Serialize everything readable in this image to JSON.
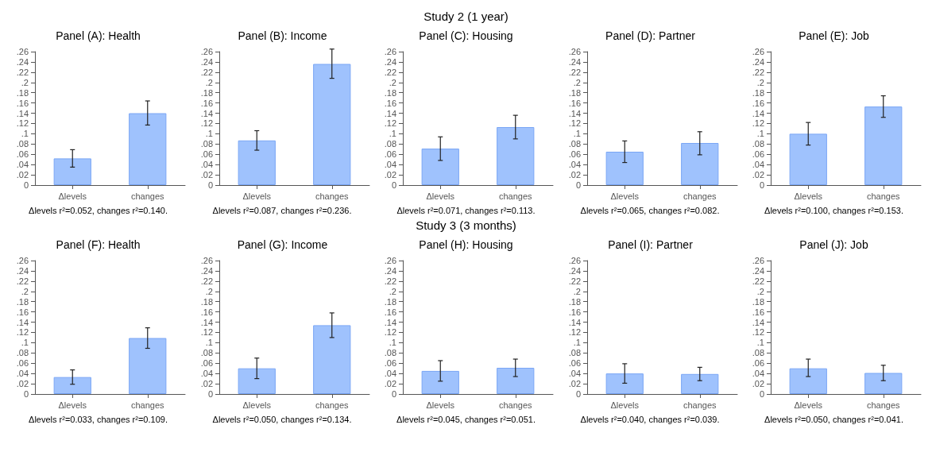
{
  "chart_data": [
    {
      "type": "other",
      "title": "Study 2 (1 year)"
    },
    {
      "type": "bar",
      "title": "Panel (A): Health",
      "categories": [
        "Δlevels",
        "changes"
      ],
      "values": [
        0.052,
        0.14
      ],
      "errors": [
        [
          0.035,
          0.069
        ],
        [
          0.117,
          0.164
        ]
      ],
      "color": "#9fc2fd",
      "ylim": [
        0,
        0.26
      ],
      "yticks": [
        {
          "value": 0,
          "label": "0"
        },
        {
          "value": 0.02,
          "label": ".02"
        },
        {
          "value": 0.04,
          "label": ".04"
        },
        {
          "value": 0.06,
          "label": ".06"
        },
        {
          "value": 0.08,
          "label": ".08"
        },
        {
          "value": 0.1,
          "label": ".1"
        },
        {
          "value": 0.12,
          "label": ".12"
        },
        {
          "value": 0.14,
          "label": ".14"
        },
        {
          "value": 0.16,
          "label": ".16"
        },
        {
          "value": 0.18,
          "label": ".18"
        },
        {
          "value": 0.2,
          "label": ".2"
        },
        {
          "value": 0.22,
          "label": ".22"
        },
        {
          "value": 0.24,
          "label": ".24"
        },
        {
          "value": 0.26,
          "label": ".26"
        }
      ],
      "annotations": [
        "Δlevels r²=0.052, changes r²=0.140."
      ]
    },
    {
      "type": "bar",
      "title": "Panel (B): Income",
      "categories": [
        "Δlevels",
        "changes"
      ],
      "values": [
        0.087,
        0.236
      ],
      "errors": [
        [
          0.068,
          0.106
        ],
        [
          0.208,
          0.265
        ]
      ],
      "color": "#9fc2fd",
      "ylim": [
        0,
        0.26
      ],
      "yticks": [
        {
          "value": 0,
          "label": "0"
        },
        {
          "value": 0.02,
          "label": ".02"
        },
        {
          "value": 0.04,
          "label": ".04"
        },
        {
          "value": 0.06,
          "label": ".06"
        },
        {
          "value": 0.08,
          "label": ".08"
        },
        {
          "value": 0.1,
          "label": ".1"
        },
        {
          "value": 0.12,
          "label": ".12"
        },
        {
          "value": 0.14,
          "label": ".14"
        },
        {
          "value": 0.16,
          "label": ".16"
        },
        {
          "value": 0.18,
          "label": ".18"
        },
        {
          "value": 0.2,
          "label": ".2"
        },
        {
          "value": 0.22,
          "label": ".22"
        },
        {
          "value": 0.24,
          "label": ".24"
        },
        {
          "value": 0.26,
          "label": ".26"
        }
      ],
      "annotations": [
        "Δlevels r²=0.087, changes r²=0.236."
      ]
    },
    {
      "type": "bar",
      "title": "Panel (C): Housing",
      "categories": [
        "Δlevels",
        "changes"
      ],
      "values": [
        0.071,
        0.113
      ],
      "errors": [
        [
          0.048,
          0.094
        ],
        [
          0.09,
          0.136
        ]
      ],
      "color": "#9fc2fd",
      "ylim": [
        0,
        0.26
      ],
      "yticks": [
        {
          "value": 0,
          "label": "0"
        },
        {
          "value": 0.02,
          "label": ".02"
        },
        {
          "value": 0.04,
          "label": ".04"
        },
        {
          "value": 0.06,
          "label": ".06"
        },
        {
          "value": 0.08,
          "label": ".08"
        },
        {
          "value": 0.1,
          "label": ".1"
        },
        {
          "value": 0.12,
          "label": ".12"
        },
        {
          "value": 0.14,
          "label": ".14"
        },
        {
          "value": 0.16,
          "label": ".16"
        },
        {
          "value": 0.18,
          "label": ".18"
        },
        {
          "value": 0.2,
          "label": ".2"
        },
        {
          "value": 0.22,
          "label": ".22"
        },
        {
          "value": 0.24,
          "label": ".24"
        },
        {
          "value": 0.26,
          "label": ".26"
        }
      ],
      "annotations": [
        "Δlevels r²=0.071, changes r²=0.113."
      ]
    },
    {
      "type": "bar",
      "title": "Panel (D): Partner",
      "categories": [
        "Δlevels",
        "changes"
      ],
      "values": [
        0.065,
        0.082
      ],
      "errors": [
        [
          0.044,
          0.086
        ],
        [
          0.059,
          0.104
        ]
      ],
      "color": "#9fc2fd",
      "ylim": [
        0,
        0.26
      ],
      "yticks": [
        {
          "value": 0,
          "label": "0"
        },
        {
          "value": 0.02,
          "label": ".02"
        },
        {
          "value": 0.04,
          "label": ".04"
        },
        {
          "value": 0.06,
          "label": ".06"
        },
        {
          "value": 0.08,
          "label": ".08"
        },
        {
          "value": 0.1,
          "label": ".1"
        },
        {
          "value": 0.12,
          "label": ".12"
        },
        {
          "value": 0.14,
          "label": ".14"
        },
        {
          "value": 0.16,
          "label": ".16"
        },
        {
          "value": 0.18,
          "label": ".18"
        },
        {
          "value": 0.2,
          "label": ".2"
        },
        {
          "value": 0.22,
          "label": ".22"
        },
        {
          "value": 0.24,
          "label": ".24"
        },
        {
          "value": 0.26,
          "label": ".26"
        }
      ],
      "annotations": [
        "Δlevels r²=0.065, changes r²=0.082."
      ]
    },
    {
      "type": "bar",
      "title": "Panel (E): Job",
      "categories": [
        "Δlevels",
        "changes"
      ],
      "values": [
        0.1,
        0.153
      ],
      "errors": [
        [
          0.078,
          0.122
        ],
        [
          0.132,
          0.174
        ]
      ],
      "color": "#9fc2fd",
      "ylim": [
        0,
        0.26
      ],
      "yticks": [
        {
          "value": 0,
          "label": "0"
        },
        {
          "value": 0.02,
          "label": ".02"
        },
        {
          "value": 0.04,
          "label": ".04"
        },
        {
          "value": 0.06,
          "label": ".06"
        },
        {
          "value": 0.08,
          "label": ".08"
        },
        {
          "value": 0.1,
          "label": ".1"
        },
        {
          "value": 0.12,
          "label": ".12"
        },
        {
          "value": 0.14,
          "label": ".14"
        },
        {
          "value": 0.16,
          "label": ".16"
        },
        {
          "value": 0.18,
          "label": ".18"
        },
        {
          "value": 0.2,
          "label": ".2"
        },
        {
          "value": 0.22,
          "label": ".22"
        },
        {
          "value": 0.24,
          "label": ".24"
        },
        {
          "value": 0.26,
          "label": ".26"
        }
      ],
      "annotations": [
        "Δlevels r²=0.100, changes r²=0.153."
      ]
    },
    {
      "type": "other",
      "title": "Study 3 (3 months)"
    },
    {
      "type": "bar",
      "title": "Panel (F): Health",
      "categories": [
        "Δlevels",
        "changes"
      ],
      "values": [
        0.033,
        0.109
      ],
      "errors": [
        [
          0.019,
          0.047
        ],
        [
          0.089,
          0.129
        ]
      ],
      "color": "#9fc2fd",
      "ylim": [
        0,
        0.26
      ],
      "yticks": [
        {
          "value": 0,
          "label": "0"
        },
        {
          "value": 0.02,
          "label": ".02"
        },
        {
          "value": 0.04,
          "label": ".04"
        },
        {
          "value": 0.06,
          "label": ".06"
        },
        {
          "value": 0.08,
          "label": ".08"
        },
        {
          "value": 0.1,
          "label": ".1"
        },
        {
          "value": 0.12,
          "label": ".12"
        },
        {
          "value": 0.14,
          "label": ".14"
        },
        {
          "value": 0.16,
          "label": ".16"
        },
        {
          "value": 0.18,
          "label": ".18"
        },
        {
          "value": 0.2,
          "label": ".2"
        },
        {
          "value": 0.22,
          "label": ".22"
        },
        {
          "value": 0.24,
          "label": ".24"
        },
        {
          "value": 0.26,
          "label": ".26"
        }
      ],
      "annotations": [
        "Δlevels r²=0.033, changes r²=0.109."
      ]
    },
    {
      "type": "bar",
      "title": "Panel (G): Income",
      "categories": [
        "Δlevels",
        "changes"
      ],
      "values": [
        0.05,
        0.134
      ],
      "errors": [
        [
          0.03,
          0.07
        ],
        [
          0.11,
          0.158
        ]
      ],
      "color": "#9fc2fd",
      "ylim": [
        0,
        0.26
      ],
      "yticks": [
        {
          "value": 0,
          "label": "0"
        },
        {
          "value": 0.02,
          "label": ".02"
        },
        {
          "value": 0.04,
          "label": ".04"
        },
        {
          "value": 0.06,
          "label": ".06"
        },
        {
          "value": 0.08,
          "label": ".08"
        },
        {
          "value": 0.1,
          "label": ".1"
        },
        {
          "value": 0.12,
          "label": ".12"
        },
        {
          "value": 0.14,
          "label": ".14"
        },
        {
          "value": 0.16,
          "label": ".16"
        },
        {
          "value": 0.18,
          "label": ".18"
        },
        {
          "value": 0.2,
          "label": ".2"
        },
        {
          "value": 0.22,
          "label": ".22"
        },
        {
          "value": 0.24,
          "label": ".24"
        },
        {
          "value": 0.26,
          "label": ".26"
        }
      ],
      "annotations": [
        "Δlevels r²=0.050, changes r²=0.134."
      ]
    },
    {
      "type": "bar",
      "title": "Panel (H): Housing",
      "categories": [
        "Δlevels",
        "changes"
      ],
      "values": [
        0.045,
        0.051
      ],
      "errors": [
        [
          0.025,
          0.065
        ],
        [
          0.034,
          0.068
        ]
      ],
      "color": "#9fc2fd",
      "ylim": [
        0,
        0.26
      ],
      "yticks": [
        {
          "value": 0,
          "label": "0"
        },
        {
          "value": 0.02,
          "label": ".02"
        },
        {
          "value": 0.04,
          "label": ".04"
        },
        {
          "value": 0.06,
          "label": ".06"
        },
        {
          "value": 0.08,
          "label": ".08"
        },
        {
          "value": 0.1,
          "label": ".1"
        },
        {
          "value": 0.12,
          "label": ".12"
        },
        {
          "value": 0.14,
          "label": ".14"
        },
        {
          "value": 0.16,
          "label": ".16"
        },
        {
          "value": 0.18,
          "label": ".18"
        },
        {
          "value": 0.2,
          "label": ".2"
        },
        {
          "value": 0.22,
          "label": ".22"
        },
        {
          "value": 0.24,
          "label": ".24"
        },
        {
          "value": 0.26,
          "label": ".26"
        }
      ],
      "annotations": [
        "Δlevels r²=0.045, changes r²=0.051."
      ]
    },
    {
      "type": "bar",
      "title": "Panel (I): Partner",
      "categories": [
        "Δlevels",
        "changes"
      ],
      "values": [
        0.04,
        0.039
      ],
      "errors": [
        [
          0.021,
          0.059
        ],
        [
          0.026,
          0.052
        ]
      ],
      "color": "#9fc2fd",
      "ylim": [
        0,
        0.26
      ],
      "yticks": [
        {
          "value": 0,
          "label": "0"
        },
        {
          "value": 0.02,
          "label": ".02"
        },
        {
          "value": 0.04,
          "label": ".04"
        },
        {
          "value": 0.06,
          "label": ".06"
        },
        {
          "value": 0.08,
          "label": ".08"
        },
        {
          "value": 0.1,
          "label": ".1"
        },
        {
          "value": 0.12,
          "label": ".12"
        },
        {
          "value": 0.14,
          "label": ".14"
        },
        {
          "value": 0.16,
          "label": ".16"
        },
        {
          "value": 0.18,
          "label": ".18"
        },
        {
          "value": 0.2,
          "label": ".2"
        },
        {
          "value": 0.22,
          "label": ".22"
        },
        {
          "value": 0.24,
          "label": ".24"
        },
        {
          "value": 0.26,
          "label": ".26"
        }
      ],
      "annotations": [
        "Δlevels r²=0.040, changes r²=0.039."
      ]
    },
    {
      "type": "bar",
      "title": "Panel (J): Job",
      "categories": [
        "Δlevels",
        "changes"
      ],
      "values": [
        0.05,
        0.041
      ],
      "errors": [
        [
          0.034,
          0.068
        ],
        [
          0.026,
          0.056
        ]
      ],
      "color": "#9fc2fd",
      "ylim": [
        0,
        0.26
      ],
      "yticks": [
        {
          "value": 0,
          "label": "0"
        },
        {
          "value": 0.02,
          "label": ".02"
        },
        {
          "value": 0.04,
          "label": ".04"
        },
        {
          "value": 0.06,
          "label": ".06"
        },
        {
          "value": 0.08,
          "label": ".08"
        },
        {
          "value": 0.1,
          "label": ".1"
        },
        {
          "value": 0.12,
          "label": ".12"
        },
        {
          "value": 0.14,
          "label": ".14"
        },
        {
          "value": 0.16,
          "label": ".16"
        },
        {
          "value": 0.18,
          "label": ".18"
        },
        {
          "value": 0.2,
          "label": ".2"
        },
        {
          "value": 0.22,
          "label": ".22"
        },
        {
          "value": 0.24,
          "label": ".24"
        },
        {
          "value": 0.26,
          "label": ".26"
        }
      ],
      "annotations": [
        "Δlevels r²=0.050, changes r²=0.041."
      ]
    }
  ]
}
